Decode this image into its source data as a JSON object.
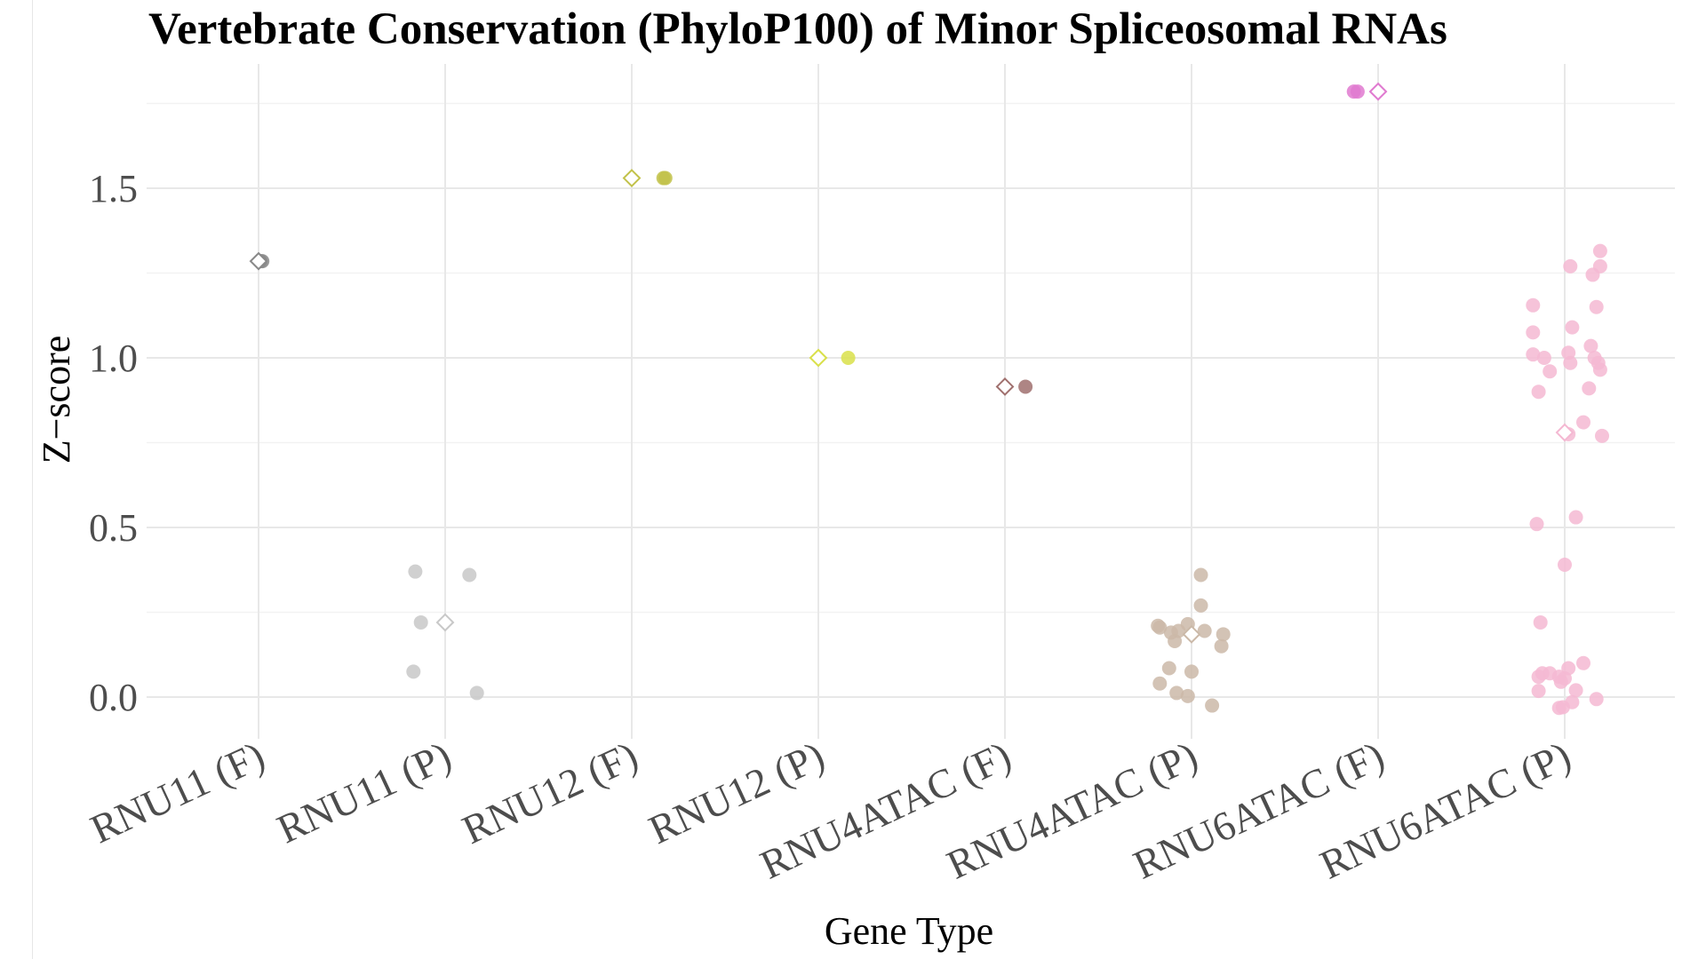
{
  "chart_data": {
    "type": "scatter",
    "title": "Vertebrate Conservation (PhyloP100) of Minor Spliceosomal RNAs",
    "xlabel": "Gene Type",
    "ylabel": "Z−score",
    "ylim": [
      -0.12,
      1.88
    ],
    "yticks": [
      0.0,
      0.5,
      1.0,
      1.5
    ],
    "ytick_labels": [
      "0.0",
      "0.5",
      "1.0",
      "1.5"
    ],
    "grid": true,
    "legend": "none",
    "categories": [
      "RNU11 (F)",
      "RNU11 (P)",
      "RNU12 (F)",
      "RNU12 (P)",
      "RNU4ATAC (F)",
      "RNU4ATAC (P)",
      "RNU6ATAC (F)",
      "RNU6ATAC (P)"
    ],
    "series": [
      {
        "category": "RNU11 (F)",
        "color": "#888888",
        "points": [
          [
            0.01,
            1.285
          ],
          [
            0.02,
            1.285
          ]
        ],
        "mean": 1.285
      },
      {
        "category": "RNU11 (P)",
        "color": "#c8c8c8",
        "points": [
          [
            -0.16,
            0.37
          ],
          [
            -0.13,
            0.22
          ],
          [
            0.13,
            0.36
          ],
          [
            -0.17,
            0.075
          ],
          [
            0.17,
            0.012
          ]
        ],
        "mean": 0.22
      },
      {
        "category": "RNU12 (F)",
        "color": "#c2c24a",
        "points": [
          [
            0.17,
            1.53
          ],
          [
            0.18,
            1.53
          ]
        ],
        "mean": 1.53
      },
      {
        "category": "RNU12 (P)",
        "color": "#d9e04a",
        "points": [
          [
            0.16,
            1.0
          ]
        ],
        "mean": 1.0
      },
      {
        "category": "RNU4ATAC (F)",
        "color": "#a0706e",
        "points": [
          [
            0.11,
            0.915
          ]
        ],
        "mean": 0.915
      },
      {
        "category": "RNU4ATAC (P)",
        "color": "#cbb9a8",
        "points": [
          [
            0.05,
            0.36
          ],
          [
            0.05,
            0.27
          ],
          [
            -0.18,
            0.21
          ],
          [
            -0.17,
            0.205
          ],
          [
            -0.11,
            0.19
          ],
          [
            -0.09,
            0.165
          ],
          [
            -0.07,
            0.195
          ],
          [
            -0.02,
            0.215
          ],
          [
            0.07,
            0.195
          ],
          [
            0.17,
            0.185
          ],
          [
            0.16,
            0.15
          ],
          [
            -0.12,
            0.085
          ],
          [
            0.0,
            0.075
          ],
          [
            -0.17,
            0.04
          ],
          [
            -0.08,
            0.012
          ],
          [
            -0.02,
            0.003
          ],
          [
            0.11,
            -0.025
          ]
        ],
        "mean": 0.185
      },
      {
        "category": "RNU6ATAC (F)",
        "color": "#e07ad0",
        "points": [
          [
            -0.13,
            1.785
          ],
          [
            -0.11,
            1.785
          ]
        ],
        "mean": 1.785
      },
      {
        "category": "RNU6ATAC (P)",
        "color": "#f4b8d2",
        "points": [
          [
            0.19,
            1.315
          ],
          [
            0.03,
            1.27
          ],
          [
            0.19,
            1.27
          ],
          [
            0.15,
            1.245
          ],
          [
            -0.17,
            1.155
          ],
          [
            0.17,
            1.15
          ],
          [
            -0.17,
            1.075
          ],
          [
            0.04,
            1.09
          ],
          [
            0.14,
            1.035
          ],
          [
            -0.17,
            1.01
          ],
          [
            0.02,
            1.015
          ],
          [
            0.16,
            1.0
          ],
          [
            -0.11,
            1.0
          ],
          [
            0.03,
            0.985
          ],
          [
            0.18,
            0.985
          ],
          [
            -0.08,
            0.96
          ],
          [
            0.19,
            0.965
          ],
          [
            0.13,
            0.91
          ],
          [
            -0.14,
            0.9
          ],
          [
            0.1,
            0.81
          ],
          [
            0.02,
            0.775
          ],
          [
            0.2,
            0.77
          ],
          [
            0.06,
            0.53
          ],
          [
            -0.15,
            0.51
          ],
          [
            0.0,
            0.39
          ],
          [
            -0.13,
            0.22
          ],
          [
            0.1,
            0.1
          ],
          [
            0.02,
            0.085
          ],
          [
            -0.12,
            0.07
          ],
          [
            -0.08,
            0.07
          ],
          [
            -0.14,
            0.06
          ],
          [
            -0.03,
            0.06
          ],
          [
            0.0,
            0.055
          ],
          [
            -0.02,
            0.045
          ],
          [
            0.06,
            0.02
          ],
          [
            -0.14,
            0.018
          ],
          [
            0.17,
            -0.006
          ],
          [
            0.04,
            -0.015
          ],
          [
            -0.01,
            -0.03
          ],
          [
            -0.03,
            -0.032
          ]
        ],
        "mean": 0.78
      }
    ]
  }
}
